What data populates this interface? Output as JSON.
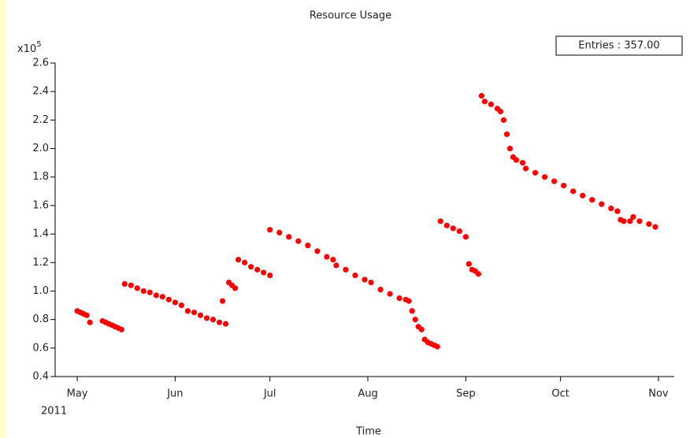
{
  "chart_data": {
    "type": "scatter",
    "title": "Resource Usage",
    "xlabel": "Time",
    "x_sublabel": "2011",
    "y_multiplier": {
      "base": "x10",
      "exponent": "5"
    },
    "stats_box": "Entries : 357.00",
    "color": "#ff0000",
    "xlim": [
      "2011-04-24",
      "2011-11-06"
    ],
    "xticks": [
      {
        "value": "2011-05-01",
        "label": "May"
      },
      {
        "value": "2011-06-01",
        "label": "Jun"
      },
      {
        "value": "2011-07-01",
        "label": "Jul"
      },
      {
        "value": "2011-08-01",
        "label": "Aug"
      },
      {
        "value": "2011-09-01",
        "label": "Sep"
      },
      {
        "value": "2011-10-01",
        "label": "Oct"
      },
      {
        "value": "2011-11-01",
        "label": "Nov"
      }
    ],
    "ylim": [
      0.4,
      2.6
    ],
    "yticks": [
      0.4,
      0.6,
      0.8,
      {
        "value": 1,
        "label": "1.0"
      },
      1.2,
      1.4,
      1.6,
      1.8,
      {
        "value": 2,
        "label": "2.0"
      },
      2.2,
      2.4,
      2.6
    ],
    "x": [
      "2011-05-01",
      "2011-05-02",
      "2011-05-03",
      "2011-05-04",
      "2011-05-05",
      "2011-05-09",
      "2011-05-10",
      "2011-05-11",
      "2011-05-12",
      "2011-05-13",
      "2011-05-14",
      "2011-05-15",
      "2011-05-16",
      "2011-05-18",
      "2011-05-20",
      "2011-05-22",
      "2011-05-24",
      "2011-05-26",
      "2011-05-28",
      "2011-05-30",
      "2011-06-01",
      "2011-06-03",
      "2011-06-05",
      "2011-06-07",
      "2011-06-09",
      "2011-06-11",
      "2011-06-13",
      "2011-06-15",
      "2011-06-17",
      "2011-06-16",
      "2011-06-18",
      "2011-06-19",
      "2011-06-20",
      "2011-06-21",
      "2011-06-23",
      "2011-06-25",
      "2011-06-27",
      "2011-06-29",
      "2011-07-01",
      "2011-07-01",
      "2011-07-04",
      "2011-07-07",
      "2011-07-10",
      "2011-07-13",
      "2011-07-16",
      "2011-07-19",
      "2011-07-21",
      "2011-07-22",
      "2011-07-25",
      "2011-07-28",
      "2011-07-31",
      "2011-08-02",
      "2011-08-05",
      "2011-08-08",
      "2011-08-11",
      "2011-08-13",
      "2011-08-14",
      "2011-08-15",
      "2011-08-16",
      "2011-08-17",
      "2011-08-18",
      "2011-08-19",
      "2011-08-20",
      "2011-08-21",
      "2011-08-22",
      "2011-08-23",
      "2011-08-24",
      "2011-08-26",
      "2011-08-28",
      "2011-08-30",
      "2011-09-01",
      "2011-09-02",
      "2011-09-03",
      "2011-09-04",
      "2011-09-05",
      "2011-09-06",
      "2011-09-07",
      "2011-09-09",
      "2011-09-11",
      "2011-09-12",
      "2011-09-13",
      "2011-09-14",
      "2011-09-15",
      "2011-09-16",
      "2011-09-17",
      "2011-09-19",
      "2011-09-20",
      "2011-09-23",
      "2011-09-26",
      "2011-09-29",
      "2011-10-02",
      "2011-10-05",
      "2011-10-08",
      "2011-10-11",
      "2011-10-14",
      "2011-10-17",
      "2011-10-19",
      "2011-10-20",
      "2011-10-21",
      "2011-10-23",
      "2011-10-24",
      "2011-10-26",
      "2011-10-29",
      "2011-10-31"
    ],
    "y": [
      0.86,
      0.85,
      0.84,
      0.83,
      0.78,
      0.79,
      0.78,
      0.77,
      0.76,
      0.75,
      0.74,
      0.73,
      1.05,
      1.04,
      1.02,
      1.0,
      0.99,
      0.97,
      0.96,
      0.94,
      0.92,
      0.9,
      0.86,
      0.85,
      0.83,
      0.81,
      0.8,
      0.78,
      0.77,
      0.93,
      1.06,
      1.04,
      1.02,
      1.22,
      1.2,
      1.17,
      1.15,
      1.13,
      1.11,
      1.43,
      1.41,
      1.38,
      1.35,
      1.32,
      1.28,
      1.24,
      1.22,
      1.18,
      1.15,
      1.11,
      1.08,
      1.06,
      1.01,
      0.98,
      0.95,
      0.94,
      0.93,
      0.86,
      0.8,
      0.75,
      0.73,
      0.66,
      0.64,
      0.63,
      0.62,
      0.61,
      1.49,
      1.46,
      1.44,
      1.42,
      1.38,
      1.19,
      1.15,
      1.14,
      1.12,
      2.37,
      2.33,
      2.31,
      2.28,
      2.26,
      2.2,
      2.1,
      2.0,
      1.94,
      1.92,
      1.9,
      1.86,
      1.83,
      1.8,
      1.77,
      1.74,
      1.7,
      1.67,
      1.64,
      1.61,
      1.58,
      1.56,
      1.5,
      1.49,
      1.49,
      1.52,
      1.49,
      1.47,
      1.45
    ]
  }
}
